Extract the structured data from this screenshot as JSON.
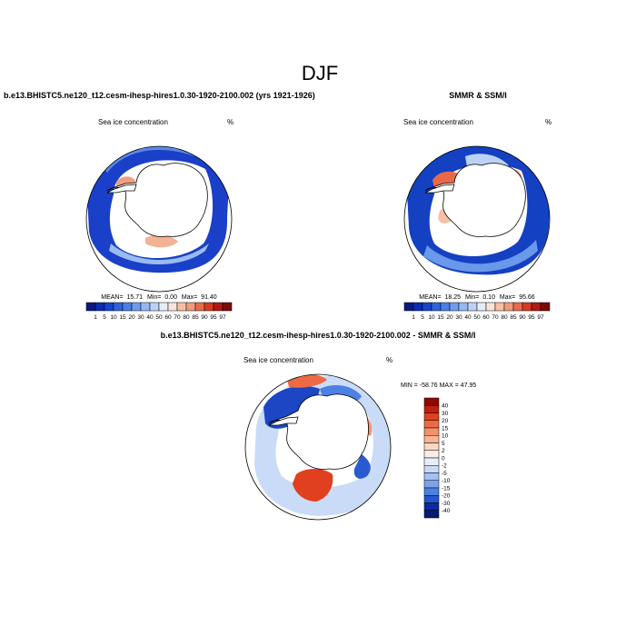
{
  "page": {
    "title": "DJF"
  },
  "chart_data": [
    {
      "type": "heatmap",
      "projection": "south-polar-stereographic",
      "title": "b.e13.BHISTC5.ne120_t12.cesm-ihesp-hires1.0.30-1920-2100.002 (yrs 1921-1926)",
      "left_label": "Sea ice concentration",
      "units": "%",
      "stats": {
        "mean_label": "MEAN=",
        "mean": "15.71",
        "min_label": "Min=",
        "min": "0.00",
        "max_label": "Max=",
        "max": "91.40"
      },
      "levels": [
        "1",
        "5",
        "10",
        "15",
        "20",
        "30",
        "40",
        "50",
        "60",
        "70",
        "80",
        "85",
        "90",
        "95",
        "97"
      ],
      "colors": [
        "#0a1a80",
        "#0b2bb0",
        "#1744cc",
        "#2d63dd",
        "#4a80e6",
        "#6f9cec",
        "#96b8f1",
        "#bcd2f5",
        "#e4edf8",
        "#fbe3d7",
        "#f6c0a6",
        "#f19a7a",
        "#e86b4c",
        "#d73a24",
        "#b01a10",
        "#7a0b05"
      ]
    },
    {
      "type": "heatmap",
      "projection": "south-polar-stereographic",
      "title": "SMMR & SSM/I",
      "left_label": "Sea ice concentration",
      "units": "%",
      "stats": {
        "mean_label": "MEAN=",
        "mean": "18.25",
        "min_label": "Min=",
        "min": "0.10",
        "max_label": "Max=",
        "max": "95.66"
      },
      "levels": [
        "1",
        "5",
        "10",
        "15",
        "20",
        "30",
        "40",
        "50",
        "60",
        "70",
        "80",
        "85",
        "90",
        "95",
        "97"
      ],
      "colors": [
        "#0a1a80",
        "#0b2bb0",
        "#1744cc",
        "#2d63dd",
        "#4a80e6",
        "#6f9cec",
        "#96b8f1",
        "#bcd2f5",
        "#e4edf8",
        "#fbe3d7",
        "#f6c0a6",
        "#f19a7a",
        "#e86b4c",
        "#d73a24",
        "#b01a10",
        "#7a0b05"
      ]
    },
    {
      "type": "heatmap",
      "projection": "south-polar-stereographic",
      "title": "b.e13.BHISTC5.ne120_t12.cesm-ihesp-hires1.0.30-1920-2100.002 - SMMR & SSM/I",
      "left_label": "Sea ice concentration",
      "units": "%",
      "minmax_label": "MIN = -58.76 MAX =  47.95",
      "levels": [
        "40",
        "30",
        "20",
        "15",
        "10",
        "5",
        "2",
        "0",
        "-2",
        "-5",
        "-10",
        "-15",
        "-20",
        "-30",
        "-40"
      ],
      "colors": [
        "#8c0a00",
        "#c21e0c",
        "#e0401f",
        "#ee6a44",
        "#f4906c",
        "#f8b496",
        "#fcd6c2",
        "#fdece4",
        "#e6eef9",
        "#c9dbf6",
        "#a4c1f2",
        "#7aa4ec",
        "#4d80e3",
        "#2755cf",
        "#0b2a9c",
        "#061a70"
      ]
    }
  ]
}
